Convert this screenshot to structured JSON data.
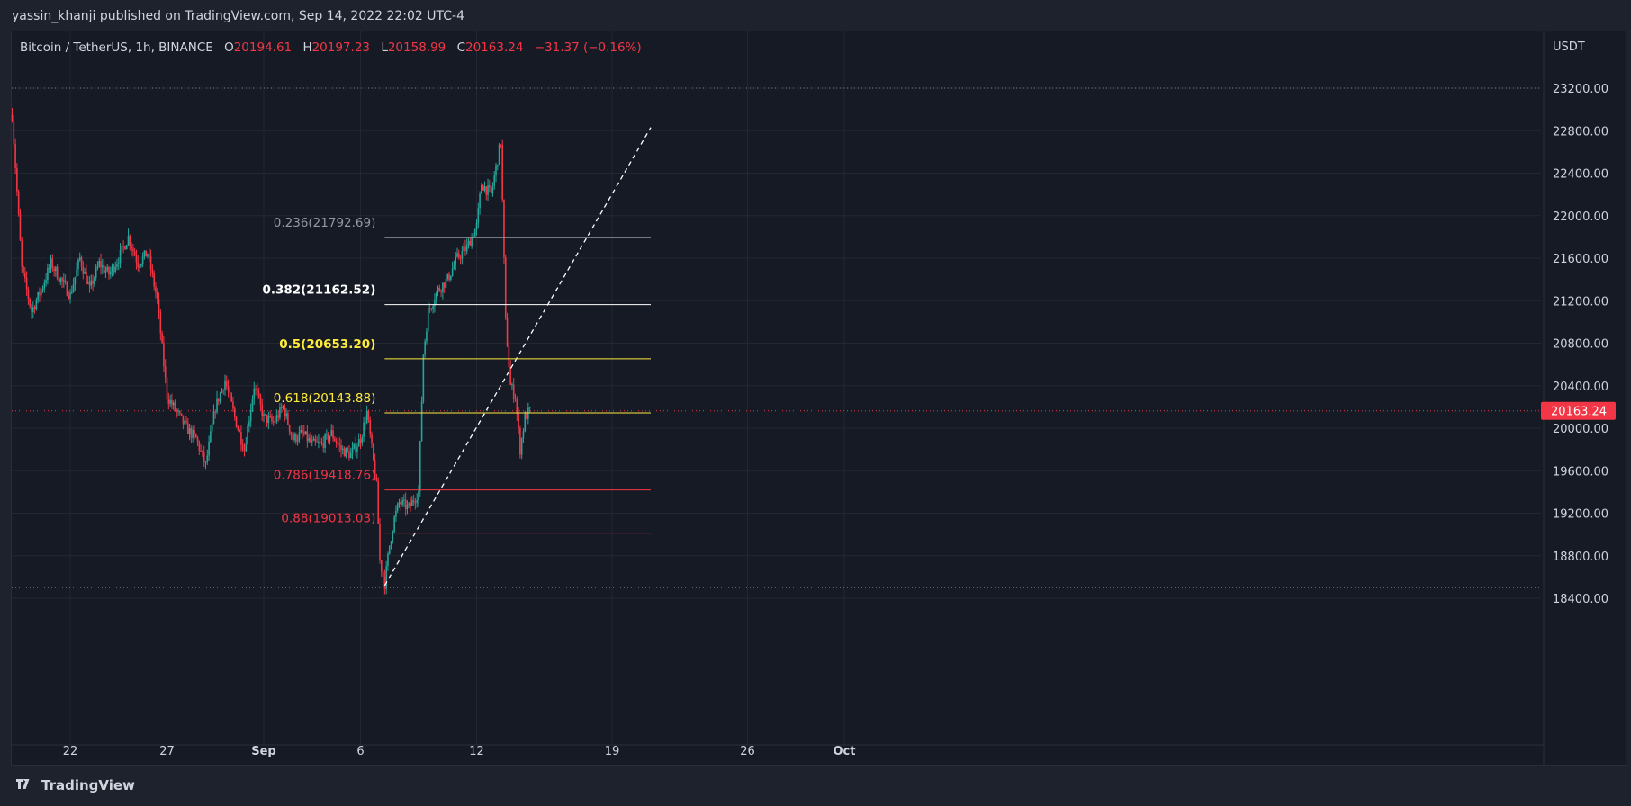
{
  "header": {
    "published_text": "yassin_khanji published on TradingView.com, Sep 14, 2022 22:02 UTC-4"
  },
  "legend": {
    "symbol": "Bitcoin / TetherUS, 1h, BINANCE",
    "open_label": "O",
    "open": "20194.61",
    "high_label": "H",
    "high": "20197.23",
    "low_label": "L",
    "low": "20158.99",
    "close_label": "C",
    "close": "20163.24",
    "change": "−31.37 (−0.16%)"
  },
  "footer": {
    "brand": "TradingView"
  },
  "colors": {
    "up": "#26a69a",
    "down": "#f23645",
    "fib_gray": "#9598a1",
    "fib_white": "#ffffff",
    "fib_yellow": "#ffeb3b",
    "fib_red": "#f23645",
    "bg": "#161a25",
    "grid": "#232732"
  },
  "chart_data": {
    "type": "candlestick",
    "currency": "USDT",
    "y_ticks": [
      "23200.00",
      "22800.00",
      "22400.00",
      "22000.00",
      "21600.00",
      "21200.00",
      "20800.00",
      "20400.00",
      "20000.00",
      "19600.00",
      "19200.00",
      "18800.00",
      "18400.00"
    ],
    "y_tick_values": [
      23200,
      22800,
      22400,
      22000,
      21600,
      21200,
      20800,
      20400,
      20000,
      19600,
      19200,
      18800,
      18400
    ],
    "x_ticks": [
      "22",
      "27",
      "Sep",
      "6",
      "12",
      "19",
      "26",
      "Oct"
    ],
    "x_tick_days": [
      "2022-08-22",
      "2022-08-27",
      "2022-09-01",
      "2022-09-06",
      "2022-09-12",
      "2022-09-19",
      "2022-09-26",
      "2022-10-01"
    ],
    "last_price": "20163.24",
    "last_price_value": 20163.24,
    "price_path": [
      [
        "2022-08-19 00:00",
        22950
      ],
      [
        "2022-08-19 12:00",
        21500
      ],
      [
        "2022-08-20 00:00",
        21100
      ],
      [
        "2022-08-20 12:00",
        21300
      ],
      [
        "2022-08-21 00:00",
        21550
      ],
      [
        "2022-08-21 12:00",
        21400
      ],
      [
        "2022-08-22 00:00",
        21250
      ],
      [
        "2022-08-22 12:00",
        21600
      ],
      [
        "2022-08-23 00:00",
        21300
      ],
      [
        "2022-08-23 12:00",
        21550
      ],
      [
        "2022-08-24 00:00",
        21450
      ],
      [
        "2022-08-24 12:00",
        21600
      ],
      [
        "2022-08-25 00:00",
        21800
      ],
      [
        "2022-08-25 12:00",
        21550
      ],
      [
        "2022-08-26 00:00",
        21650
      ],
      [
        "2022-08-26 12:00",
        21200
      ],
      [
        "2022-08-27 00:00",
        20300
      ],
      [
        "2022-08-27 12:00",
        20150
      ],
      [
        "2022-08-28 00:00",
        20000
      ],
      [
        "2022-08-28 12:00",
        19900
      ],
      [
        "2022-08-29 00:00",
        19650
      ],
      [
        "2022-08-29 12:00",
        20200
      ],
      [
        "2022-08-30 00:00",
        20450
      ],
      [
        "2022-08-30 12:00",
        20100
      ],
      [
        "2022-08-31 00:00",
        19800
      ],
      [
        "2022-08-31 12:00",
        20400
      ],
      [
        "2022-09-01 00:00",
        20100
      ],
      [
        "2022-09-01 12:00",
        20050
      ],
      [
        "2022-09-02 00:00",
        20200
      ],
      [
        "2022-09-02 12:00",
        19900
      ],
      [
        "2022-09-03 00:00",
        19950
      ],
      [
        "2022-09-03 12:00",
        19850
      ],
      [
        "2022-09-04 00:00",
        19850
      ],
      [
        "2022-09-04 12:00",
        19950
      ],
      [
        "2022-09-05 00:00",
        19800
      ],
      [
        "2022-09-05 12:00",
        19750
      ],
      [
        "2022-09-06 00:00",
        19900
      ],
      [
        "2022-09-06 08:00",
        20150
      ],
      [
        "2022-09-06 20:00",
        19450
      ],
      [
        "2022-09-07 00:00",
        18750
      ],
      [
        "2022-09-07 06:00",
        18540
      ],
      [
        "2022-09-07 12:00",
        18900
      ],
      [
        "2022-09-07 18:00",
        19150
      ],
      [
        "2022-09-08 00:00",
        19300
      ],
      [
        "2022-09-08 12:00",
        19250
      ],
      [
        "2022-09-09 00:00",
        19400
      ],
      [
        "2022-09-09 06:00",
        20700
      ],
      [
        "2022-09-09 12:00",
        21100
      ],
      [
        "2022-09-10 00:00",
        21300
      ],
      [
        "2022-09-10 12:00",
        21400
      ],
      [
        "2022-09-11 00:00",
        21600
      ],
      [
        "2022-09-11 12:00",
        21700
      ],
      [
        "2022-09-12 00:00",
        21900
      ],
      [
        "2022-09-12 06:00",
        22300
      ],
      [
        "2022-09-12 18:00",
        22200
      ],
      [
        "2022-09-13 06:00",
        22700
      ],
      [
        "2022-09-13 12:00",
        21000
      ],
      [
        "2022-09-13 18:00",
        20400
      ],
      [
        "2022-09-14 00:00",
        20300
      ],
      [
        "2022-09-14 06:00",
        19800
      ],
      [
        "2022-09-14 12:00",
        20100
      ],
      [
        "2022-09-14 18:00",
        20163.24
      ]
    ],
    "fib_levels": [
      {
        "ratio": "0.236",
        "price": "21792.69",
        "label": "0.236(21792.69)",
        "color": "#9598a1"
      },
      {
        "ratio": "0.382",
        "price": "21162.52",
        "label": "0.382(21162.52)",
        "color": "#ffffff"
      },
      {
        "ratio": "0.5",
        "price": "20653.20",
        "label": "0.5(20653.20)",
        "color": "#ffeb3b"
      },
      {
        "ratio": "0.618",
        "price": "20143.88",
        "label": "0.618(20143.88)",
        "color": "#ffeb3b"
      },
      {
        "ratio": "0.786",
        "price": "19418.76",
        "label": "0.786(19418.76)",
        "color": "#f23645"
      },
      {
        "ratio": "0.88",
        "price": "19013.03",
        "label": "0.88(19013.03)",
        "color": "#f23645"
      }
    ],
    "fib_start": "2022-09-07 06:00",
    "fib_end": "2022-09-21 00:00",
    "trend_line": {
      "from": [
        "2022-09-07 06:00",
        18520
      ],
      "to": [
        "2022-09-21 00:00",
        22830
      ]
    },
    "horizontal_lines": [
      23200,
      18500
    ],
    "grid": true
  }
}
